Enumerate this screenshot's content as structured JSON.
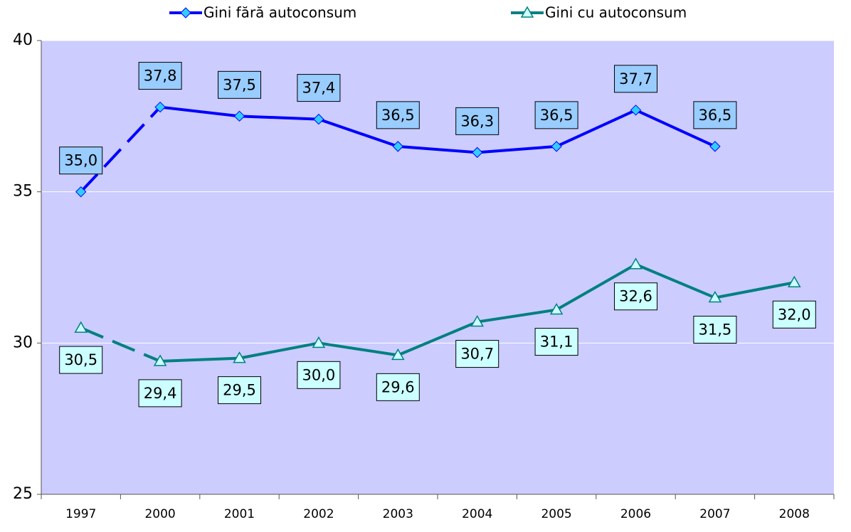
{
  "chart_data": {
    "type": "line",
    "categories": [
      "1997",
      "2000",
      "2001",
      "2002",
      "2003",
      "2004",
      "2005",
      "2006",
      "2007",
      "2008"
    ],
    "series": [
      {
        "name": "Gini fără autoconsum",
        "color": "#0000ff",
        "marker": "diamond",
        "marker_color": "#33ccff",
        "label_color": "#99ccff",
        "values": [
          35.0,
          37.8,
          37.5,
          37.4,
          36.5,
          36.3,
          36.5,
          37.7,
          36.5,
          null
        ],
        "value_labels": [
          "35,0",
          "37,8",
          "37,5",
          "37,4",
          "36,5",
          "36,3",
          "36,5",
          "37,7",
          "36,5",
          null
        ]
      },
      {
        "name": "Gini cu autoconsum",
        "color": "#008080",
        "marker": "triangle",
        "marker_color": "#ccffff",
        "label_color": "#ccffff",
        "values": [
          30.5,
          29.4,
          29.5,
          30.0,
          29.6,
          30.7,
          31.1,
          32.6,
          31.5,
          32.0
        ],
        "value_labels": [
          "30,5",
          "29,4",
          "29,5",
          "30,0",
          "29,6",
          "30,7",
          "31,1",
          "32,6",
          "31,5",
          "32,0"
        ]
      }
    ],
    "ylim": [
      25,
      40
    ],
    "yticks": [
      25,
      30,
      35,
      40
    ],
    "grid": true,
    "legend": "top",
    "background": "#ccccff"
  }
}
